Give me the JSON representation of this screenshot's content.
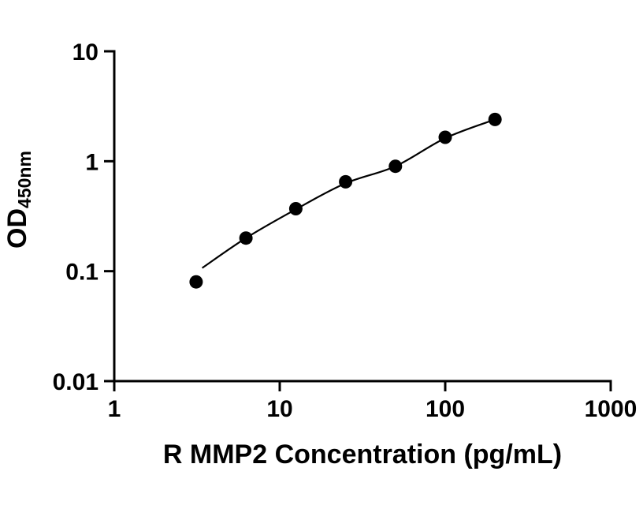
{
  "chart_data": {
    "type": "scatter",
    "title": "",
    "xlabel": "R MMP2 Concentration (pg/mL)",
    "ylabel_main": "OD",
    "ylabel_sub": "450nm",
    "x_scale": "log",
    "y_scale": "log",
    "xlim": [
      1,
      1000
    ],
    "ylim": [
      0.01,
      10
    ],
    "x_major_ticks": [
      1,
      10,
      100,
      1000
    ],
    "x_tick_labels": [
      "1",
      "10",
      "100",
      "1000"
    ],
    "y_major_ticks": [
      10,
      1,
      0.1,
      0.01
    ],
    "y_tick_labels": [
      "10",
      "1",
      "0.1",
      "0.01"
    ],
    "grid": false,
    "legend": "none",
    "axis_color": "#000000",
    "series": [
      {
        "name": "standard-curve-points",
        "marker": "circle",
        "color": "#000000",
        "points": [
          {
            "x": 3.125,
            "y": 0.08
          },
          {
            "x": 6.25,
            "y": 0.2
          },
          {
            "x": 12.5,
            "y": 0.37
          },
          {
            "x": 25,
            "y": 0.65
          },
          {
            "x": 50,
            "y": 0.9
          },
          {
            "x": 100,
            "y": 1.65
          },
          {
            "x": 200,
            "y": 2.4
          }
        ]
      }
    ],
    "fit_curve": [
      {
        "x": 3.4,
        "y": 0.107
      },
      {
        "x": 6.25,
        "y": 0.2
      },
      {
        "x": 12.5,
        "y": 0.365
      },
      {
        "x": 25,
        "y": 0.63
      },
      {
        "x": 50,
        "y": 0.9
      },
      {
        "x": 100,
        "y": 1.62
      },
      {
        "x": 200,
        "y": 2.4
      }
    ]
  }
}
